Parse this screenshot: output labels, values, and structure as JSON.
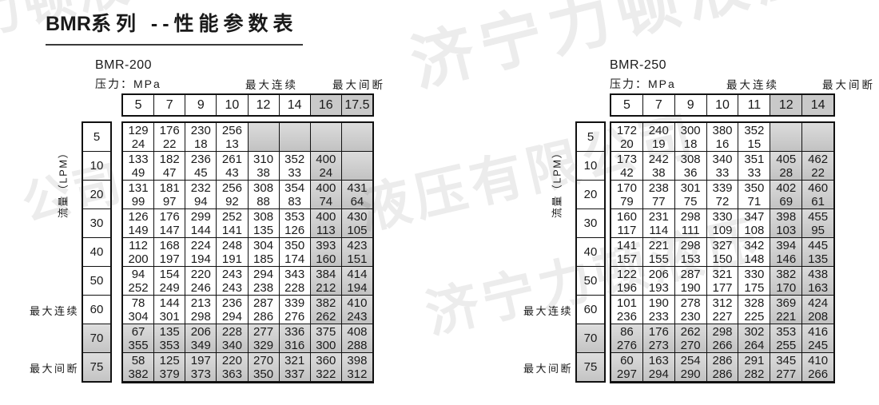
{
  "page": {
    "title_prefix": "BMR",
    "title_suffix": "系列 --性能参数表"
  },
  "watermark": {
    "items": [
      "济宁力顿液压",
      "液压有限公司",
      "济宁力顿液压",
      "力顿液",
      "公司"
    ]
  },
  "tables": [
    {
      "model": "BMR-200",
      "pressure_label": "压力：MPa",
      "max_continuous_label": "最大连续",
      "max_intermittent_label": "最大间断",
      "flow_label": "流量（LPM）",
      "pressures": [
        "5",
        "7",
        "9",
        "10",
        "12",
        "14",
        "16",
        "17.5"
      ],
      "shaded_pressure_cols": [
        6,
        7
      ],
      "flows": [
        "5",
        "10",
        "20",
        "30",
        "40",
        "50",
        "60",
        "70",
        "75"
      ],
      "shaded_flow_rows": [
        7,
        8
      ],
      "side_labels": {
        "6": "最大连续",
        "8": "最大间断"
      },
      "cells": [
        [
          [
            "129",
            "24"
          ],
          [
            "176",
            "22"
          ],
          [
            "230",
            "18"
          ],
          [
            "256",
            "13"
          ],
          [
            "",
            ""
          ],
          [
            "",
            ""
          ],
          [
            "",
            ""
          ],
          [
            "",
            ""
          ]
        ],
        [
          [
            "133",
            "49"
          ],
          [
            "182",
            "47"
          ],
          [
            "236",
            "45"
          ],
          [
            "261",
            "43"
          ],
          [
            "310",
            "38"
          ],
          [
            "352",
            "33"
          ],
          [
            "400",
            "24"
          ],
          [
            "",
            ""
          ]
        ],
        [
          [
            "131",
            "99"
          ],
          [
            "181",
            "97"
          ],
          [
            "232",
            "94"
          ],
          [
            "256",
            "92"
          ],
          [
            "308",
            "88"
          ],
          [
            "354",
            "83"
          ],
          [
            "400",
            "74"
          ],
          [
            "431",
            "64"
          ]
        ],
        [
          [
            "126",
            "149"
          ],
          [
            "176",
            "147"
          ],
          [
            "299",
            "144"
          ],
          [
            "252",
            "141"
          ],
          [
            "308",
            "135"
          ],
          [
            "353",
            "126"
          ],
          [
            "400",
            "113"
          ],
          [
            "430",
            "105"
          ]
        ],
        [
          [
            "112",
            "200"
          ],
          [
            "168",
            "197"
          ],
          [
            "224",
            "194"
          ],
          [
            "248",
            "191"
          ],
          [
            "304",
            "185"
          ],
          [
            "350",
            "174"
          ],
          [
            "393",
            "160"
          ],
          [
            "423",
            "151"
          ]
        ],
        [
          [
            "94",
            "252"
          ],
          [
            "154",
            "249"
          ],
          [
            "220",
            "246"
          ],
          [
            "243",
            "243"
          ],
          [
            "294",
            "238"
          ],
          [
            "343",
            "228"
          ],
          [
            "384",
            "212"
          ],
          [
            "414",
            "194"
          ]
        ],
        [
          [
            "78",
            "304"
          ],
          [
            "144",
            "301"
          ],
          [
            "213",
            "298"
          ],
          [
            "236",
            "294"
          ],
          [
            "287",
            "286"
          ],
          [
            "339",
            "276"
          ],
          [
            "382",
            "262"
          ],
          [
            "410",
            "243"
          ]
        ],
        [
          [
            "67",
            "355"
          ],
          [
            "135",
            "353"
          ],
          [
            "206",
            "349"
          ],
          [
            "228",
            "340"
          ],
          [
            "277",
            "329"
          ],
          [
            "336",
            "316"
          ],
          [
            "375",
            "300"
          ],
          [
            "408",
            "288"
          ]
        ],
        [
          [
            "58",
            "382"
          ],
          [
            "125",
            "379"
          ],
          [
            "197",
            "373"
          ],
          [
            "220",
            "363"
          ],
          [
            "270",
            "350"
          ],
          [
            "321",
            "337"
          ],
          [
            "360",
            "322"
          ],
          [
            "398",
            "312"
          ]
        ]
      ]
    },
    {
      "model": "BMR-250",
      "pressure_label": "压力：MPa",
      "max_continuous_label": "最大连续",
      "max_intermittent_label": "最大间断",
      "flow_label": "流量（LPM）",
      "pressures": [
        "5",
        "7",
        "9",
        "10",
        "11",
        "12",
        "14"
      ],
      "shaded_pressure_cols": [
        5,
        6
      ],
      "flows": [
        "5",
        "10",
        "20",
        "30",
        "40",
        "50",
        "60",
        "70",
        "75"
      ],
      "shaded_flow_rows": [
        7,
        8
      ],
      "side_labels": {
        "6": "最大连续",
        "8": "最大间断"
      },
      "cells": [
        [
          [
            "172",
            "20"
          ],
          [
            "240",
            "19"
          ],
          [
            "300",
            "18"
          ],
          [
            "380",
            "16"
          ],
          [
            "352",
            "15"
          ],
          [
            "",
            ""
          ],
          [
            "",
            ""
          ]
        ],
        [
          [
            "173",
            "42"
          ],
          [
            "242",
            "38"
          ],
          [
            "308",
            "36"
          ],
          [
            "340",
            "33"
          ],
          [
            "351",
            "33"
          ],
          [
            "405",
            "28"
          ],
          [
            "462",
            "22"
          ]
        ],
        [
          [
            "170",
            "79"
          ],
          [
            "238",
            "77"
          ],
          [
            "301",
            "75"
          ],
          [
            "339",
            "72"
          ],
          [
            "350",
            "71"
          ],
          [
            "402",
            "69"
          ],
          [
            "460",
            "61"
          ]
        ],
        [
          [
            "160",
            "117"
          ],
          [
            "231",
            "114"
          ],
          [
            "298",
            "111"
          ],
          [
            "330",
            "109"
          ],
          [
            "347",
            "108"
          ],
          [
            "398",
            "103"
          ],
          [
            "455",
            "95"
          ]
        ],
        [
          [
            "141",
            "157"
          ],
          [
            "221",
            "155"
          ],
          [
            "298",
            "153"
          ],
          [
            "327",
            "150"
          ],
          [
            "342",
            "148"
          ],
          [
            "394",
            "146"
          ],
          [
            "445",
            "135"
          ]
        ],
        [
          [
            "122",
            "196"
          ],
          [
            "206",
            "193"
          ],
          [
            "287",
            "190"
          ],
          [
            "321",
            "177"
          ],
          [
            "330",
            "175"
          ],
          [
            "382",
            "170"
          ],
          [
            "438",
            "163"
          ]
        ],
        [
          [
            "101",
            "236"
          ],
          [
            "190",
            "233"
          ],
          [
            "278",
            "230"
          ],
          [
            "312",
            "227"
          ],
          [
            "328",
            "225"
          ],
          [
            "369",
            "221"
          ],
          [
            "424",
            "208"
          ]
        ],
        [
          [
            "86",
            "276"
          ],
          [
            "176",
            "273"
          ],
          [
            "262",
            "270"
          ],
          [
            "298",
            "266"
          ],
          [
            "302",
            "264"
          ],
          [
            "353",
            "255"
          ],
          [
            "416",
            "245"
          ]
        ],
        [
          [
            "60",
            "297"
          ],
          [
            "163",
            "294"
          ],
          [
            "254",
            "290"
          ],
          [
            "286",
            "286"
          ],
          [
            "291",
            "282"
          ],
          [
            "345",
            "277"
          ],
          [
            "410",
            "266"
          ]
        ]
      ]
    }
  ]
}
